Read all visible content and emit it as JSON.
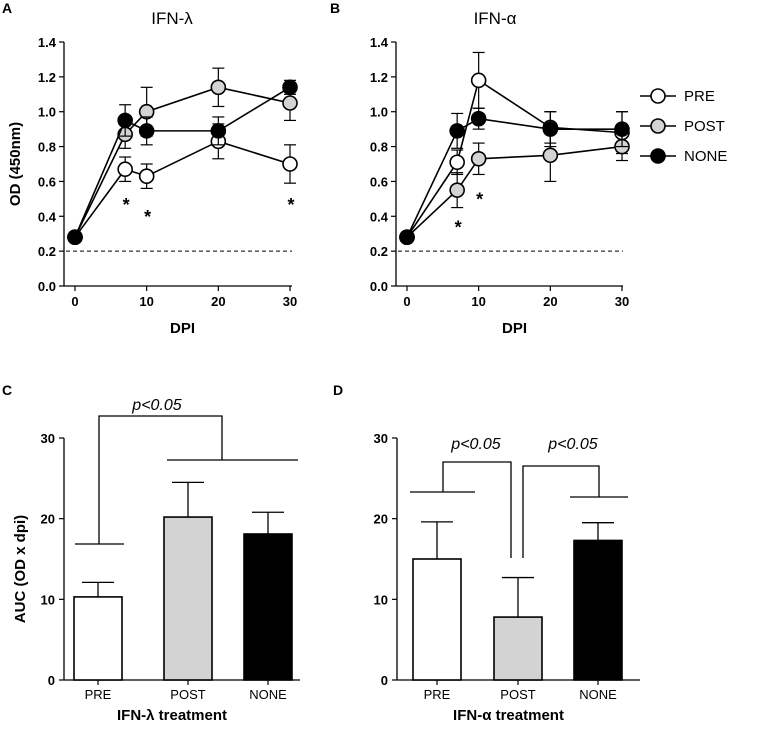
{
  "panels": {
    "A": "A",
    "B": "B",
    "C": "C",
    "D": "D"
  },
  "colors": {
    "PRE": "#ffffff",
    "POST": "#d3d3d3",
    "NONE": "#000000",
    "axis": "#000000"
  },
  "legend": [
    "PRE",
    "POST",
    "NONE"
  ],
  "chart_data": [
    {
      "id": "A",
      "type": "line",
      "title": "IFN-λ",
      "xlabel": "DPI",
      "ylabel": "OD (450nm)",
      "xlim": [
        0,
        30
      ],
      "ylim": [
        0.0,
        1.4
      ],
      "xticks": [
        0,
        10,
        20,
        30
      ],
      "yticks": [
        "0.0",
        "0.2",
        "0.4",
        "0.6",
        "0.8",
        "1.0",
        "1.2",
        "1.4"
      ],
      "baseline": 0.2,
      "series": [
        {
          "name": "PRE",
          "x": [
            0,
            7,
            10,
            20,
            30
          ],
          "y": [
            0.28,
            0.67,
            0.63,
            0.83,
            0.7
          ],
          "err": [
            0.02,
            0.07,
            0.07,
            0.1,
            0.11
          ]
        },
        {
          "name": "POST",
          "x": [
            0,
            7,
            10,
            20,
            30
          ],
          "y": [
            0.28,
            0.87,
            1.0,
            1.14,
            1.05
          ],
          "err": [
            0.02,
            0.08,
            0.14,
            0.11,
            0.1
          ]
        },
        {
          "name": "NONE",
          "x": [
            0,
            7,
            10,
            20,
            30
          ],
          "y": [
            0.28,
            0.95,
            0.89,
            0.89,
            1.14
          ],
          "err": [
            0.02,
            0.09,
            0.08,
            0.08,
            0.04
          ]
        }
      ],
      "annotations": [
        {
          "text": "*",
          "x": 7,
          "y": 0.5
        },
        {
          "text": "*",
          "x": 10,
          "y": 0.43
        },
        {
          "text": "*",
          "x": 30,
          "y": 0.5
        }
      ]
    },
    {
      "id": "B",
      "type": "line",
      "title": "IFN-α",
      "xlabel": "DPI",
      "ylabel": "",
      "xlim": [
        0,
        30
      ],
      "ylim": [
        0.0,
        1.4
      ],
      "xticks": [
        0,
        10,
        20,
        30
      ],
      "yticks": [
        "0.0",
        "0.2",
        "0.4",
        "0.6",
        "0.8",
        "1.0",
        "1.2",
        "1.4"
      ],
      "baseline": 0.2,
      "series": [
        {
          "name": "PRE",
          "x": [
            0,
            7,
            10,
            20,
            30
          ],
          "y": [
            0.28,
            0.71,
            1.18,
            0.91,
            0.88
          ],
          "err": [
            0.02,
            0.07,
            0.16,
            0.09,
            0.12
          ]
        },
        {
          "name": "POST",
          "x": [
            0,
            7,
            10,
            20,
            30
          ],
          "y": [
            0.28,
            0.55,
            0.73,
            0.75,
            0.8
          ],
          "err": [
            0.02,
            0.1,
            0.09,
            0.15,
            0.08
          ]
        },
        {
          "name": "NONE",
          "x": [
            0,
            7,
            10,
            20,
            30
          ],
          "y": [
            0.28,
            0.89,
            0.96,
            0.9,
            0.9
          ],
          "err": [
            0.02,
            0.1,
            0.06,
            0.1,
            0.1
          ]
        }
      ],
      "annotations": [
        {
          "text": "*",
          "x": 7,
          "y": 0.37
        },
        {
          "text": "*",
          "x": 10,
          "y": 0.53
        }
      ]
    },
    {
      "id": "C",
      "type": "bar",
      "title": "",
      "xlabel": "IFN-λ treatment",
      "ylabel": "AUC (OD x dpi)",
      "categories": [
        "PRE",
        "POST",
        "NONE"
      ],
      "values": [
        10.3,
        20.2,
        18.1
      ],
      "err": [
        1.8,
        4.3,
        2.7
      ],
      "ylim": [
        0,
        30
      ],
      "yticks": [
        "0",
        "10",
        "20",
        "30"
      ],
      "significance": [
        {
          "text": "p<0.05",
          "from": "PRE",
          "to": [
            "POST",
            "NONE"
          ]
        }
      ]
    },
    {
      "id": "D",
      "type": "bar",
      "title": "",
      "xlabel": "IFN-α treatment",
      "ylabel": "",
      "categories": [
        "PRE",
        "POST",
        "NONE"
      ],
      "values": [
        15.0,
        7.8,
        17.3
      ],
      "err": [
        4.6,
        4.9,
        2.2
      ],
      "ylim": [
        0,
        30
      ],
      "yticks": [
        "0",
        "10",
        "20",
        "30"
      ],
      "significance": [
        {
          "text": "p<0.05",
          "from": "PRE",
          "to": [
            "POST"
          ]
        },
        {
          "text": "p<0.05",
          "from": "POST",
          "to": [
            "NONE"
          ]
        }
      ]
    }
  ]
}
